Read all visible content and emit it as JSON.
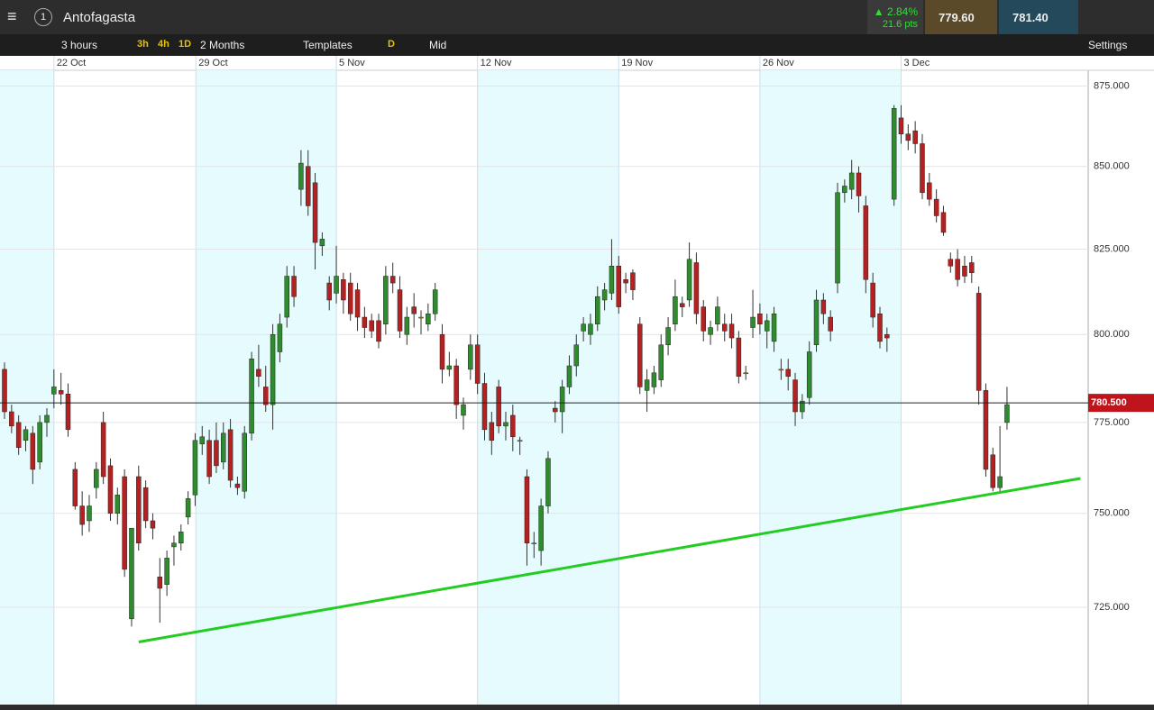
{
  "toolbar": {
    "instrument": "Antofagasta",
    "change_pct": "▲ 2.84%",
    "change_pts": "21.6 pts",
    "sell": "779.60",
    "buy": "781.40",
    "interval": "3 hours",
    "quick": [
      "3h",
      "4h",
      "1D"
    ],
    "range": "2 Months",
    "templates": "Templates",
    "d": "D",
    "price_type": "Mid",
    "settings": "Settings"
  },
  "chart_data": {
    "type": "candlestick",
    "log_scale": true,
    "ylim": [
      700,
      880
    ],
    "yticks": [
      {
        "value": 725,
        "label": "725.000"
      },
      {
        "value": 750,
        "label": "750.000"
      },
      {
        "value": 775,
        "label": "775.000"
      },
      {
        "value": 800,
        "label": "800.000"
      },
      {
        "value": 825,
        "label": "825.000"
      },
      {
        "value": 850,
        "label": "850.000"
      },
      {
        "value": 875,
        "label": "875.000"
      }
    ],
    "xlim": [
      -0.64,
      153.5
    ],
    "xticks": [
      {
        "value": 7,
        "label": "22 Oct"
      },
      {
        "value": 27.1,
        "label": "29 Oct"
      },
      {
        "value": 47,
        "label": "5 Nov"
      },
      {
        "value": 67,
        "label": "12 Nov"
      },
      {
        "value": 87,
        "label": "19 Nov"
      },
      {
        "value": 107,
        "label": "26 Nov"
      },
      {
        "value": 127,
        "label": "3 Dec"
      }
    ],
    "up_color": "#2e8b2e",
    "down_color": "#b22222",
    "ohlc": [
      [
        790,
        792,
        776,
        778
      ],
      [
        778,
        780,
        772,
        774
      ],
      [
        775,
        777,
        766,
        768
      ],
      [
        770,
        774,
        767,
        773
      ],
      [
        772,
        774,
        758,
        762
      ],
      [
        764,
        777,
        762,
        775
      ],
      [
        775,
        779,
        771,
        777
      ],
      [
        783,
        790,
        779,
        785
      ],
      [
        784,
        789,
        780,
        783
      ],
      [
        783,
        786,
        771,
        773
      ],
      [
        762,
        764,
        751,
        752
      ],
      [
        752,
        756,
        744,
        747
      ],
      [
        748,
        755,
        745,
        752
      ],
      [
        757,
        764,
        754,
        762
      ],
      [
        775,
        778,
        758,
        760
      ],
      [
        763,
        765,
        748,
        750
      ],
      [
        750,
        757,
        747,
        755
      ],
      [
        760,
        762,
        733,
        735
      ],
      [
        722,
        746,
        720,
        746
      ],
      [
        760,
        763,
        740,
        742
      ],
      [
        757,
        759,
        746,
        748
      ],
      [
        748,
        750,
        743,
        746
      ],
      [
        733,
        738,
        721,
        730
      ],
      [
        731,
        740,
        728,
        738
      ],
      [
        741,
        744,
        736,
        742
      ],
      [
        742,
        747,
        740,
        745
      ],
      [
        749,
        756,
        747,
        754
      ],
      [
        755,
        772,
        752,
        770
      ],
      [
        769,
        774,
        766,
        771
      ],
      [
        770,
        773,
        758,
        760
      ],
      [
        770,
        775,
        761,
        763
      ],
      [
        764,
        775,
        762,
        772
      ],
      [
        773,
        776,
        757,
        759
      ],
      [
        758,
        760,
        755,
        757
      ],
      [
        756,
        774,
        754,
        772
      ],
      [
        772,
        795,
        770,
        793
      ],
      [
        790,
        797,
        785,
        788
      ],
      [
        785,
        791,
        778,
        780
      ],
      [
        780,
        803,
        773,
        800
      ],
      [
        795,
        806,
        792,
        803
      ],
      [
        805,
        820,
        802,
        817
      ],
      [
        817,
        820,
        808,
        811
      ],
      [
        843,
        855,
        838,
        851
      ],
      [
        850,
        855,
        835,
        838
      ],
      [
        845,
        848,
        819,
        827
      ],
      [
        826,
        830,
        823,
        828
      ],
      [
        815,
        817,
        807,
        810
      ],
      [
        812,
        826,
        809,
        817
      ],
      [
        816,
        818,
        806,
        810
      ],
      [
        815,
        818,
        804,
        806
      ],
      [
        813,
        815,
        801,
        805
      ],
      [
        805,
        808,
        799,
        802
      ],
      [
        804,
        806,
        799,
        801
      ],
      [
        804,
        806,
        796,
        798
      ],
      [
        803,
        820,
        800,
        817
      ],
      [
        817,
        821,
        812,
        815
      ],
      [
        813,
        817,
        799,
        801
      ],
      [
        800,
        808,
        797,
        805
      ],
      [
        808,
        812,
        802,
        806
      ],
      [
        805,
        807,
        800,
        805
      ],
      [
        803,
        809,
        801,
        806
      ],
      [
        806,
        815,
        804,
        813
      ],
      [
        800,
        803,
        786,
        790
      ],
      [
        790,
        795,
        788,
        791
      ],
      [
        791,
        793,
        776,
        780
      ],
      [
        777,
        782,
        773,
        780
      ],
      [
        790,
        800,
        787,
        797
      ],
      [
        797,
        800,
        783,
        786
      ],
      [
        786,
        789,
        770,
        773
      ],
      [
        775,
        778,
        766,
        770
      ],
      [
        785,
        787,
        772,
        774
      ],
      [
        774,
        778,
        770,
        775
      ],
      [
        777,
        780,
        767,
        771
      ],
      [
        770,
        771,
        766,
        770
      ],
      [
        760,
        762,
        736,
        742
      ],
      [
        742,
        745,
        738,
        742
      ],
      [
        740,
        754,
        736,
        752
      ],
      [
        752,
        767,
        750,
        765
      ],
      [
        779,
        781,
        775,
        778
      ],
      [
        778,
        787,
        772,
        785
      ],
      [
        785,
        794,
        783,
        791
      ],
      [
        791,
        800,
        788,
        797
      ],
      [
        801,
        805,
        798,
        803
      ],
      [
        800,
        806,
        797,
        803
      ],
      [
        803,
        814,
        801,
        811
      ],
      [
        810,
        815,
        807,
        813
      ],
      [
        812,
        828,
        810,
        820
      ],
      [
        820,
        823,
        806,
        808
      ],
      [
        816,
        818,
        812,
        815
      ],
      [
        818,
        819,
        810,
        813
      ],
      [
        803,
        805,
        783,
        785
      ],
      [
        784,
        790,
        778,
        787
      ],
      [
        785,
        791,
        783,
        789
      ],
      [
        787,
        800,
        785,
        797
      ],
      [
        797,
        805,
        794,
        802
      ],
      [
        803,
        816,
        801,
        811
      ],
      [
        809,
        811,
        805,
        808
      ],
      [
        810,
        827,
        808,
        822
      ],
      [
        821,
        824,
        803,
        806
      ],
      [
        808,
        810,
        798,
        801
      ],
      [
        800,
        804,
        797,
        802
      ],
      [
        803,
        811,
        801,
        808
      ],
      [
        803,
        806,
        798,
        801
      ],
      [
        803,
        806,
        796,
        799
      ],
      [
        799,
        801,
        786,
        788
      ],
      [
        789,
        791,
        787,
        789
      ],
      [
        802,
        813,
        799,
        805
      ],
      [
        806,
        809,
        800,
        803
      ],
      [
        801,
        806,
        796,
        804
      ],
      [
        798,
        808,
        795,
        806
      ],
      [
        790,
        793,
        787,
        790
      ],
      [
        790,
        793,
        784,
        788
      ],
      [
        787,
        789,
        774,
        778
      ],
      [
        778,
        783,
        776,
        781
      ],
      [
        782,
        798,
        780,
        795
      ],
      [
        797,
        813,
        795,
        810
      ],
      [
        810,
        812,
        803,
        806
      ],
      [
        805,
        807,
        798,
        801
      ],
      [
        815,
        845,
        812,
        842
      ],
      [
        842,
        846,
        839,
        844
      ],
      [
        843,
        852,
        840,
        848
      ],
      [
        848,
        850,
        836,
        841
      ],
      [
        838,
        841,
        812,
        816
      ],
      [
        815,
        818,
        802,
        805
      ],
      [
        806,
        808,
        796,
        798
      ],
      [
        800,
        802,
        795,
        799
      ],
      [
        840,
        869,
        838,
        868
      ],
      [
        865,
        869,
        857,
        860
      ],
      [
        860,
        863,
        855,
        858
      ],
      [
        861,
        864,
        854,
        857
      ],
      [
        857,
        860,
        840,
        842
      ],
      [
        845,
        848,
        838,
        840
      ],
      [
        840,
        843,
        833,
        835
      ],
      [
        836,
        838,
        829,
        830
      ],
      [
        822,
        824,
        818,
        820
      ],
      [
        822,
        825,
        814,
        816
      ],
      [
        820,
        823,
        815,
        817
      ],
      [
        821,
        823,
        815,
        818
      ],
      [
        812,
        814,
        780,
        784
      ],
      [
        784,
        786,
        760,
        762
      ],
      [
        766,
        768,
        756,
        757
      ],
      [
        757,
        774,
        756,
        760
      ],
      [
        775,
        785,
        773,
        780
      ]
    ],
    "trendline": {
      "color": "#22cc22",
      "x": [
        19,
        152.4
      ],
      "y": [
        716,
        759.5
      ]
    },
    "price_line": {
      "value": 780.5,
      "label": "780.500"
    }
  }
}
